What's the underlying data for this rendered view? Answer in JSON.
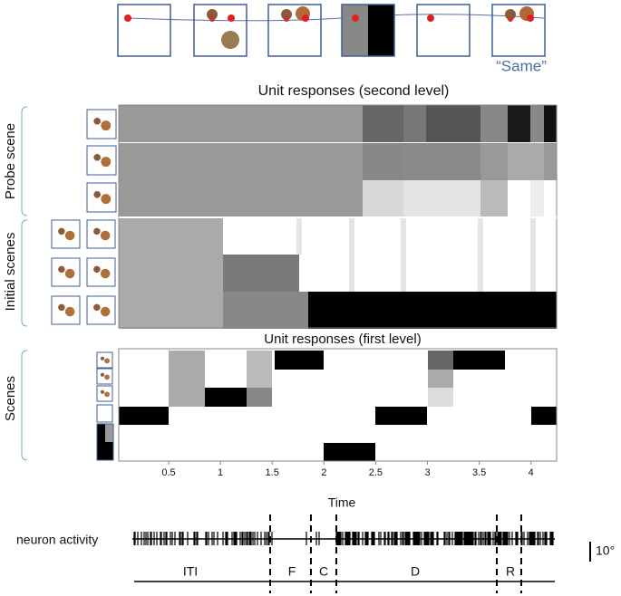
{
  "stimulus_strip": {
    "response_label": "“Same”"
  },
  "second_level": {
    "title": "Unit responses (second level)",
    "group_labels": [
      "Probe scene",
      "Initial scenes"
    ]
  },
  "first_level": {
    "title": "Unit responses (first level)",
    "row_label": "Scenes",
    "x_ticks": [
      "0.5",
      "1",
      "1.5",
      "2",
      "2.5",
      "3",
      "3.5",
      "4"
    ],
    "x_label": "Time"
  },
  "neuron_trace": {
    "label": "neuron activity",
    "scale": "10°",
    "epochs": [
      "ITI",
      "F",
      "C",
      "D",
      "R"
    ]
  }
}
